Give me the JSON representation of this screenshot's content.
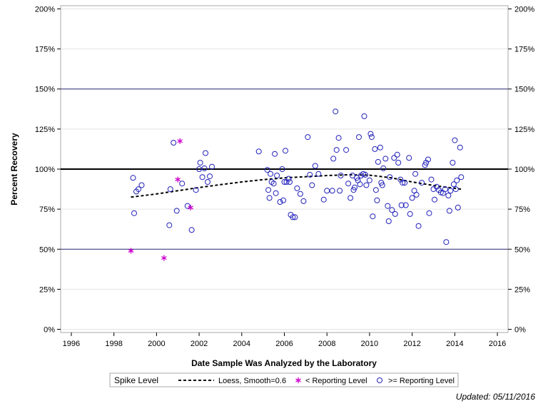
{
  "chart_data": {
    "type": "scatter",
    "xlabel": "Date Sample Was Analyzed by the Laboratory",
    "ylabel": "Percent Recovery",
    "xlim": [
      1995.5,
      2016.5
    ],
    "ylim": [
      -2,
      202
    ],
    "x_ticks": [
      1996,
      1998,
      2000,
      2002,
      2004,
      2006,
      2008,
      2010,
      2012,
      2014,
      2016
    ],
    "y_ticks": [
      0,
      25,
      50,
      75,
      100,
      125,
      150,
      175,
      200
    ],
    "y_tick_suffix": "%",
    "reference_lines": [
      {
        "y": 100,
        "style": "thick",
        "color": "#000000"
      },
      {
        "y": 150,
        "style": "thin",
        "color": "#2b2b7a"
      },
      {
        "y": 50,
        "style": "thin",
        "color": "#2b2b7a"
      }
    ],
    "grid": true,
    "legend": {
      "placement": "bottom",
      "title": "Spike Level",
      "entries": [
        "Loess, Smooth=0.6",
        "< Reporting Level",
        ">= Reporting Level"
      ]
    },
    "series": [
      {
        "name": ">= Reporting Level",
        "marker": "circle",
        "color": "#2222bb",
        "points": [
          [
            1998.9,
            94.5
          ],
          [
            1998.95,
            72.5
          ],
          [
            1999.05,
            86
          ],
          [
            1999.15,
            87.5
          ],
          [
            1999.3,
            90
          ],
          [
            2000.6,
            65
          ],
          [
            2000.65,
            87.5
          ],
          [
            2000.8,
            116.5
          ],
          [
            2000.95,
            74
          ],
          [
            2001.2,
            91
          ],
          [
            2001.45,
            77
          ],
          [
            2001.65,
            62
          ],
          [
            2001.85,
            87
          ],
          [
            2002.0,
            100
          ],
          [
            2002.05,
            104
          ],
          [
            2002.15,
            95
          ],
          [
            2002.25,
            100.5
          ],
          [
            2002.3,
            110
          ],
          [
            2002.4,
            92
          ],
          [
            2002.5,
            95.5
          ],
          [
            2002.6,
            101.5
          ],
          [
            2004.8,
            111
          ],
          [
            2005.2,
            99.5
          ],
          [
            2005.25,
            87
          ],
          [
            2005.3,
            82
          ],
          [
            2005.35,
            97
          ],
          [
            2005.4,
            92
          ],
          [
            2005.5,
            91
          ],
          [
            2005.55,
            109.5
          ],
          [
            2005.6,
            85
          ],
          [
            2005.65,
            96
          ],
          [
            2005.8,
            79.5
          ],
          [
            2005.9,
            100
          ],
          [
            2005.95,
            80.5
          ],
          [
            2006.0,
            92
          ],
          [
            2006.05,
            111.5
          ],
          [
            2006.1,
            92
          ],
          [
            2006.2,
            94
          ],
          [
            2006.25,
            92
          ],
          [
            2006.3,
            71.5
          ],
          [
            2006.4,
            70
          ],
          [
            2006.5,
            70
          ],
          [
            2006.6,
            88
          ],
          [
            2006.75,
            84.5
          ],
          [
            2006.9,
            80
          ],
          [
            2007.1,
            120
          ],
          [
            2007.2,
            96.5
          ],
          [
            2007.3,
            90
          ],
          [
            2007.45,
            102
          ],
          [
            2007.6,
            97
          ],
          [
            2007.85,
            81
          ],
          [
            2008.0,
            86.5
          ],
          [
            2008.25,
            86.5
          ],
          [
            2008.3,
            106.5
          ],
          [
            2008.4,
            136
          ],
          [
            2008.45,
            112
          ],
          [
            2008.55,
            119.5
          ],
          [
            2008.6,
            86.5
          ],
          [
            2008.65,
            96
          ],
          [
            2008.9,
            112
          ],
          [
            2009.0,
            91
          ],
          [
            2009.1,
            82
          ],
          [
            2009.2,
            96
          ],
          [
            2009.25,
            87
          ],
          [
            2009.3,
            88.5
          ],
          [
            2009.4,
            94.5
          ],
          [
            2009.45,
            93
          ],
          [
            2009.5,
            120
          ],
          [
            2009.55,
            90.5
          ],
          [
            2009.6,
            96
          ],
          [
            2009.7,
            97
          ],
          [
            2009.75,
            133
          ],
          [
            2009.8,
            96.5
          ],
          [
            2009.85,
            90
          ],
          [
            2010.0,
            93
          ],
          [
            2010.05,
            122
          ],
          [
            2010.1,
            120
          ],
          [
            2010.15,
            70.5
          ],
          [
            2010.25,
            112.5
          ],
          [
            2010.3,
            87
          ],
          [
            2010.35,
            80.5
          ],
          [
            2010.4,
            104.5
          ],
          [
            2010.5,
            113.5
          ],
          [
            2010.55,
            91.5
          ],
          [
            2010.6,
            90
          ],
          [
            2010.65,
            100.5
          ],
          [
            2010.75,
            106.5
          ],
          [
            2010.85,
            77
          ],
          [
            2010.9,
            67.5
          ],
          [
            2010.95,
            95
          ],
          [
            2011.05,
            74.5
          ],
          [
            2011.15,
            107
          ],
          [
            2011.2,
            72
          ],
          [
            2011.3,
            109
          ],
          [
            2011.35,
            104
          ],
          [
            2011.45,
            93.5
          ],
          [
            2011.5,
            77.5
          ],
          [
            2011.55,
            91.5
          ],
          [
            2011.65,
            91.5
          ],
          [
            2011.7,
            77.5
          ],
          [
            2011.85,
            107
          ],
          [
            2011.9,
            72
          ],
          [
            2012.0,
            82
          ],
          [
            2012.1,
            86.5
          ],
          [
            2012.15,
            97
          ],
          [
            2012.2,
            84
          ],
          [
            2012.3,
            64.5
          ],
          [
            2012.45,
            91.5
          ],
          [
            2012.6,
            102.5
          ],
          [
            2012.65,
            104
          ],
          [
            2012.75,
            106
          ],
          [
            2012.8,
            72.5
          ],
          [
            2012.9,
            93.5
          ],
          [
            2013.0,
            87.5
          ],
          [
            2013.05,
            81
          ],
          [
            2013.15,
            89
          ],
          [
            2013.25,
            87
          ],
          [
            2013.35,
            85.5
          ],
          [
            2013.45,
            85
          ],
          [
            2013.55,
            87.5
          ],
          [
            2013.6,
            54.5
          ],
          [
            2013.7,
            83.5
          ],
          [
            2013.75,
            74
          ],
          [
            2013.8,
            86.5
          ],
          [
            2013.9,
            104
          ],
          [
            2013.95,
            90.5
          ],
          [
            2014.05,
            87.5
          ],
          [
            2014.1,
            93
          ],
          [
            2014.15,
            76
          ],
          [
            2014.25,
            113.5
          ],
          [
            2014.3,
            95
          ],
          [
            2014.0,
            118
          ]
        ]
      },
      {
        "name": "< Reporting Level",
        "marker": "asterisk",
        "color": "#cc00cc",
        "points": [
          [
            1998.8,
            49
          ],
          [
            2000.35,
            44.5
          ],
          [
            2001.0,
            93.5
          ],
          [
            2001.1,
            117.5
          ],
          [
            2001.6,
            76
          ]
        ]
      },
      {
        "name": "Loess, Smooth=0.6",
        "marker": "dashed-line",
        "color": "#000000",
        "points": [
          [
            1998.8,
            82.5
          ],
          [
            2000.0,
            84.5
          ],
          [
            2001.0,
            86.5
          ],
          [
            2002.0,
            88.5
          ],
          [
            2003.0,
            90.3
          ],
          [
            2004.0,
            92
          ],
          [
            2005.0,
            93.4
          ],
          [
            2006.0,
            94.5
          ],
          [
            2007.0,
            95.3
          ],
          [
            2008.0,
            96
          ],
          [
            2009.0,
            96.5
          ],
          [
            2010.0,
            96.2
          ],
          [
            2011.0,
            94.6
          ],
          [
            2012.0,
            92
          ],
          [
            2013.0,
            89.8
          ],
          [
            2014.3,
            87.5
          ]
        ]
      }
    ]
  },
  "footer": {
    "updated": "Updated: 05/11/2016"
  }
}
